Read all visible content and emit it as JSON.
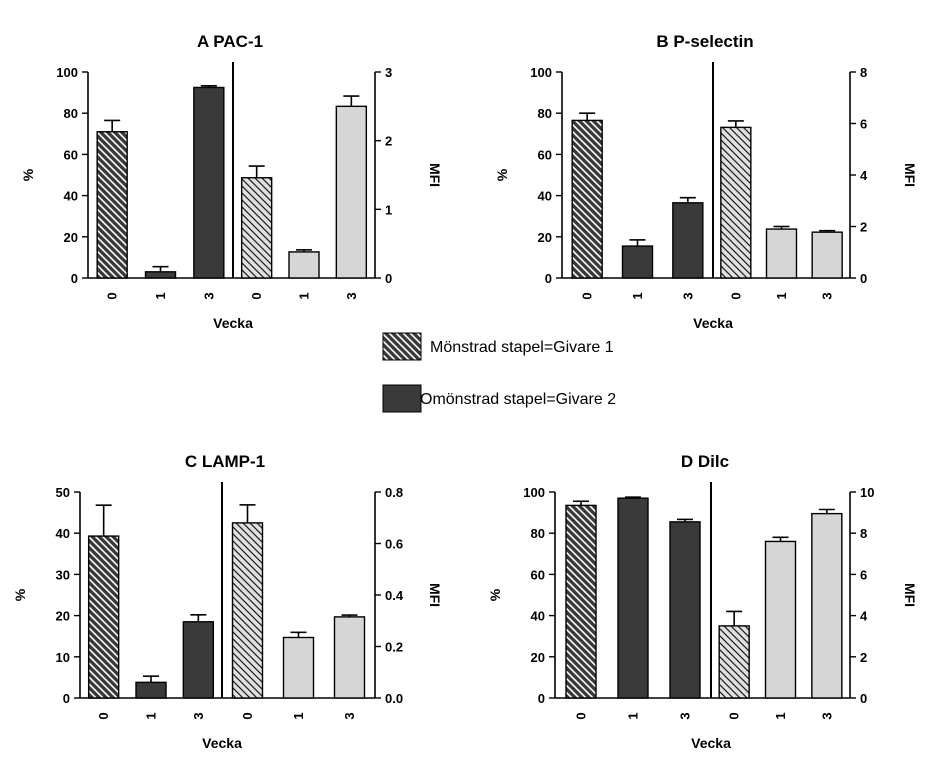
{
  "chart_data": [
    {
      "type": "bar",
      "panel": "A",
      "title": "PAC-1",
      "xlabel": "Vecka",
      "ylabel_left": "%",
      "ylabel_right": "MFI",
      "ylim_left": [
        0,
        100
      ],
      "yticks_left": [
        0,
        20,
        40,
        60,
        80,
        100
      ],
      "ylim_right": [
        0,
        3
      ],
      "yticks_right": [
        0,
        1,
        2,
        3
      ],
      "groups": [
        {
          "axis": "%",
          "bars": [
            {
              "label": "0",
              "value": 71,
              "error": 5.5,
              "fill": "hatch-dark"
            },
            {
              "label": "1",
              "value": 3,
              "error": 2.5,
              "fill": "dark"
            },
            {
              "label": "3",
              "value": 92.5,
              "error": 0.8,
              "fill": "dark"
            }
          ]
        },
        {
          "axis": "MFI",
          "bars": [
            {
              "label": "0",
              "value": 1.46,
              "error": 0.17,
              "fill": "hatch-light"
            },
            {
              "label": "1",
              "value": 0.38,
              "error": 0.03,
              "fill": "light"
            },
            {
              "label": "3",
              "value": 2.5,
              "error": 0.15,
              "fill": "light"
            }
          ]
        }
      ]
    },
    {
      "type": "bar",
      "panel": "B",
      "title": "P-selectin",
      "xlabel": "Vecka",
      "ylabel_left": "%",
      "ylabel_right": "MFI",
      "ylim_left": [
        0,
        100
      ],
      "yticks_left": [
        0,
        20,
        40,
        60,
        80,
        100
      ],
      "ylim_right": [
        0,
        8
      ],
      "yticks_right": [
        0,
        2,
        4,
        6,
        8
      ],
      "groups": [
        {
          "axis": "%",
          "bars": [
            {
              "label": "0",
              "value": 76.5,
              "error": 3.5,
              "fill": "hatch-dark"
            },
            {
              "label": "1",
              "value": 15.5,
              "error": 3,
              "fill": "dark"
            },
            {
              "label": "3",
              "value": 36.5,
              "error": 2.5,
              "fill": "dark"
            }
          ]
        },
        {
          "axis": "MFI",
          "bars": [
            {
              "label": "0",
              "value": 5.85,
              "error": 0.25,
              "fill": "hatch-light"
            },
            {
              "label": "1",
              "value": 1.9,
              "error": 0.1,
              "fill": "light"
            },
            {
              "label": "3",
              "value": 1.78,
              "error": 0.06,
              "fill": "light"
            }
          ]
        }
      ]
    },
    {
      "type": "bar",
      "panel": "C",
      "title": "LAMP-1",
      "xlabel": "Vecka",
      "ylabel_left": "%",
      "ylabel_right": "MFI",
      "ylim_left": [
        0,
        50
      ],
      "yticks_left": [
        0,
        10,
        20,
        30,
        40,
        50
      ],
      "ylim_right": [
        0,
        0.8
      ],
      "yticks_right": [
        "0.0",
        "0.2",
        "0.4",
        "0.6",
        "0.8"
      ],
      "groups": [
        {
          "axis": "%",
          "bars": [
            {
              "label": "0",
              "value": 39.3,
              "error": 7.5,
              "fill": "hatch-dark"
            },
            {
              "label": "1",
              "value": 3.8,
              "error": 1.5,
              "fill": "dark"
            },
            {
              "label": "3",
              "value": 18.5,
              "error": 1.7,
              "fill": "dark"
            }
          ]
        },
        {
          "axis": "MFI",
          "bars": [
            {
              "label": "0",
              "value": 0.68,
              "error": 0.07,
              "fill": "hatch-light"
            },
            {
              "label": "1",
              "value": 0.235,
              "error": 0.02,
              "fill": "light"
            },
            {
              "label": "3",
              "value": 0.315,
              "error": 0.007,
              "fill": "light"
            }
          ]
        }
      ]
    },
    {
      "type": "bar",
      "panel": "D",
      "title": "Dilc",
      "xlabel": "Vecka",
      "ylabel_left": "%",
      "ylabel_right": "MFI",
      "ylim_left": [
        0,
        100
      ],
      "yticks_left": [
        0,
        20,
        40,
        60,
        80,
        100
      ],
      "ylim_right": [
        0,
        10
      ],
      "yticks_right": [
        0,
        2,
        4,
        6,
        8,
        10
      ],
      "groups": [
        {
          "axis": "%",
          "bars": [
            {
              "label": "0",
              "value": 93.5,
              "error": 2,
              "fill": "hatch-dark"
            },
            {
              "label": "1",
              "value": 97,
              "error": 0.5,
              "fill": "dark"
            },
            {
              "label": "3",
              "value": 85.5,
              "error": 1.2,
              "fill": "dark"
            }
          ]
        },
        {
          "axis": "MFI",
          "bars": [
            {
              "label": "0",
              "value": 3.5,
              "error": 0.7,
              "fill": "hatch-light"
            },
            {
              "label": "1",
              "value": 7.6,
              "error": 0.2,
              "fill": "light"
            },
            {
              "label": "3",
              "value": 8.95,
              "error": 0.2,
              "fill": "light"
            }
          ]
        }
      ]
    }
  ],
  "legend": {
    "items": [
      {
        "label": "Mönstrad stapel=Givare 1",
        "fill": "hatch-dark"
      },
      {
        "label": "Omönstrad stapel=Givare 2",
        "fill": "dark"
      }
    ]
  },
  "colors": {
    "dark": "#3a3a3a",
    "light": "#d6d6d6",
    "hatch_stroke": "#000000",
    "axis": "#000000"
  }
}
